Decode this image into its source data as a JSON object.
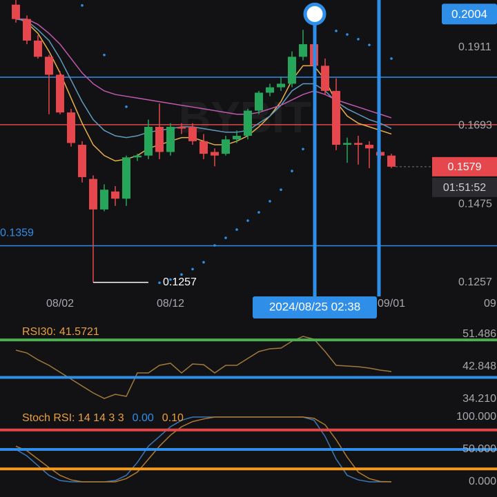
{
  "chart_data": [
    {
      "type": "candlestick",
      "watermark": "BYBIT",
      "categories": [
        null,
        null,
        null,
        null,
        "08/02",
        null,
        null,
        null,
        null,
        null,
        null,
        null,
        null,
        null,
        "08/12",
        null,
        null,
        null,
        null,
        null,
        null,
        null,
        null,
        null,
        null,
        null,
        null,
        null,
        null,
        null,
        null,
        null,
        null,
        null,
        "09/01"
      ],
      "clipped_x_label": "09",
      "ohlc": [
        [
          0.203,
          0.2043,
          0.198,
          0.199
        ],
        [
          0.199,
          0.2,
          0.192,
          0.193
        ],
        [
          0.193,
          0.1945,
          0.188,
          0.1885
        ],
        [
          0.1885,
          0.189,
          0.1725,
          0.1835
        ],
        [
          0.1835,
          0.1845,
          0.1725,
          0.173
        ],
        [
          0.173,
          0.174,
          0.1635,
          0.1645
        ],
        [
          0.164,
          0.165,
          0.1535,
          0.155
        ],
        [
          0.1545,
          0.1555,
          0.1257,
          0.146
        ],
        [
          0.146,
          0.153,
          0.1455,
          0.1515
        ],
        [
          0.151,
          0.1525,
          0.147,
          0.149
        ],
        [
          0.149,
          0.161,
          0.147,
          0.1605
        ],
        [
          0.1605,
          0.1615,
          0.1595,
          0.161
        ],
        [
          0.161,
          0.171,
          0.16,
          0.169
        ],
        [
          0.169,
          0.1755,
          0.16,
          0.162
        ],
        [
          0.162,
          0.17,
          0.161,
          0.169
        ],
        [
          0.169,
          0.17,
          0.167,
          0.1685
        ],
        [
          0.169,
          0.17,
          0.164,
          0.165
        ],
        [
          0.165,
          0.167,
          0.16,
          0.1615
        ],
        [
          0.162,
          0.163,
          0.158,
          0.161
        ],
        [
          0.1615,
          0.1665,
          0.161,
          0.1655
        ],
        [
          0.1655,
          0.168,
          0.1645,
          0.1665
        ],
        [
          0.1665,
          0.174,
          0.1655,
          0.1735
        ],
        [
          0.1735,
          0.179,
          0.1725,
          0.1785
        ],
        [
          0.1785,
          0.181,
          0.1775,
          0.18
        ],
        [
          0.18,
          0.183,
          0.179,
          0.181
        ],
        [
          0.181,
          0.19,
          0.18,
          0.1885
        ],
        [
          0.1885,
          0.196,
          0.1875,
          0.192
        ],
        [
          0.192,
          0.1925,
          0.183,
          0.186
        ],
        [
          0.186,
          0.188,
          0.178,
          0.179
        ],
        [
          0.179,
          0.1825,
          0.1625,
          0.164
        ],
        [
          0.164,
          0.166,
          0.159,
          0.1645
        ],
        [
          0.1645,
          0.1665,
          0.1585,
          0.164
        ],
        [
          0.164,
          0.165,
          0.1575,
          0.163
        ],
        [
          0.162,
          0.1625,
          0.16,
          0.161
        ],
        [
          0.161,
          0.1615,
          0.1575,
          0.1579
        ]
      ],
      "up_color": "#26a65b",
      "down_color": "#e5474d",
      "lines": [
        {
          "color": "#e8b24a",
          "values": [
            0.1995,
            0.198,
            0.195,
            0.19,
            0.184,
            0.177,
            0.17,
            0.164,
            0.161,
            0.1595,
            0.16,
            0.161,
            0.163,
            0.164,
            0.165,
            0.166,
            0.166,
            0.165,
            0.164,
            0.164,
            0.165,
            0.1665,
            0.169,
            0.172,
            0.176,
            0.182,
            0.186,
            0.186,
            0.182,
            0.176,
            0.172,
            0.17,
            0.169,
            0.168,
            0.167
          ]
        },
        {
          "color": "#5f9cc0",
          "values": [
            0.199,
            0.1985,
            0.196,
            0.193,
            0.188,
            0.182,
            0.176,
            0.171,
            0.168,
            0.1665,
            0.166,
            0.1665,
            0.1675,
            0.168,
            0.1685,
            0.169,
            0.169,
            0.1685,
            0.168,
            0.1675,
            0.1675,
            0.168,
            0.17,
            0.172,
            0.175,
            0.179,
            0.181,
            0.181,
            0.179,
            0.176,
            0.174,
            0.1725,
            0.171,
            0.17,
            0.1685
          ]
        },
        {
          "color": "#c25ab0",
          "values": [
            0.199,
            0.199,
            0.1975,
            0.195,
            0.192,
            0.188,
            0.184,
            0.181,
            0.179,
            0.178,
            0.1775,
            0.177,
            0.1765,
            0.176,
            0.1755,
            0.175,
            0.1745,
            0.174,
            0.1735,
            0.173,
            0.1725,
            0.1725,
            0.173,
            0.174,
            0.175,
            0.1765,
            0.178,
            0.179,
            0.178,
            0.1765,
            0.1755,
            0.1745,
            0.1735,
            0.1725,
            0.1715
          ]
        }
      ],
      "sar": {
        "color": "#2f8fe8",
        "values": [
          null,
          null,
          null,
          null,
          null,
          null,
          0.2028,
          null,
          0.189,
          null,
          0.1746,
          null,
          null,
          0.1256,
          0.1265,
          0.1279,
          0.1294,
          0.1313,
          0.136,
          0.1381,
          0.1404,
          0.1429,
          0.1452,
          0.1483,
          0.1515,
          0.1567,
          0.1628,
          null,
          null,
          0.1957,
          0.1947,
          0.1934,
          0.1918,
          null,
          0.188
        ]
      },
      "hlines": [
        {
          "value": 0.1828,
          "color": "#2f8fe8"
        },
        {
          "value": 0.1696,
          "color": "#e04848"
        },
        {
          "value": 0.1359,
          "color": "#2f8fe8"
        }
      ],
      "crosshair": {
        "price": 0.2004,
        "time": "2024/08/25 02:38"
      },
      "last_price": 0.1579,
      "countdown": "01:51:52",
      "low_label": 0.1257,
      "ylim": [
        0.1218,
        0.2043
      ],
      "yticks": [
        0.1911,
        0.1693,
        0.1475,
        0.1257
      ]
    },
    {
      "type": "line",
      "title": "RSI30:",
      "series": [
        {
          "color": "#a07a3a",
          "values": [
            47.26,
            46.52,
            44.69,
            43.22,
            41.38,
            39.54,
            37.7,
            35.86,
            34.39,
            35.5,
            34.94,
            41.19,
            41.19,
            43.22,
            43.77,
            41.19,
            43.58,
            43.4,
            41.19,
            43.22,
            43.22,
            45.05,
            46.89,
            47.63,
            47.81,
            49.65,
            50.93,
            50.2,
            46.89,
            43.22,
            43.03,
            42.85,
            42.48,
            41.93,
            41.5721
          ]
        }
      ],
      "hlines": [
        {
          "value": 50,
          "color": "#4caf50"
        },
        {
          "value": 40,
          "color": "#2f8fe8"
        }
      ],
      "ylim": [
        32.19,
        55.16
      ],
      "yticks": [
        51.486,
        42.848,
        {
          "value": 34.21,
          "label": "34.210"
        }
      ]
    },
    {
      "type": "line",
      "title": "Stoch RSI: 14 14 3 3",
      "series": [
        {
          "color": "#3a78b8",
          "value_label": "0.00",
          "label_color": "#2f8fe8",
          "values": [
            50,
            40,
            25,
            10,
            2,
            0,
            0,
            0,
            0,
            2,
            10,
            30,
            55,
            70,
            85,
            95,
            100,
            100,
            100,
            100,
            100,
            100,
            100,
            100,
            100,
            100,
            100,
            95,
            70,
            35,
            10,
            3,
            0,
            0,
            0
          ]
        },
        {
          "color": "#b07a30",
          "value_label": "0.10",
          "label_color": "#f0a030",
          "values": [
            55,
            48,
            35,
            22,
            10,
            3,
            0,
            0,
            0,
            0,
            5,
            15,
            35,
            55,
            72,
            85,
            93,
            97,
            100,
            100,
            100,
            100,
            100,
            100,
            100,
            100,
            100,
            98,
            88,
            65,
            38,
            15,
            5,
            0.5,
            0.1
          ]
        }
      ],
      "hlines": [
        {
          "value": 80,
          "color": "#e04848"
        },
        {
          "value": 50,
          "color": "#2f8fe8"
        },
        {
          "value": 20,
          "color": "#f59a1c"
        }
      ],
      "ylim": [
        -23.4,
        115.96
      ],
      "yticks": [
        {
          "value": 100,
          "label": "100.000"
        },
        {
          "value": 50,
          "label": "50.000"
        },
        {
          "value": 0,
          "label": "0.000"
        }
      ]
    }
  ]
}
